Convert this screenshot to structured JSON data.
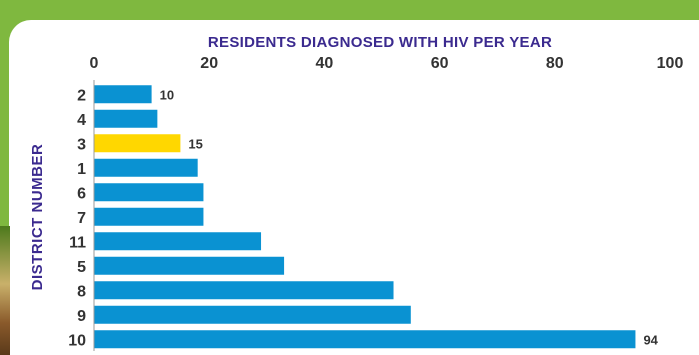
{
  "colors": {
    "frame": "#7fb83f",
    "bar": "#0a92d2",
    "highlight": "#ffd700",
    "title": "#3b2a8f"
  },
  "chart_data": {
    "type": "bar",
    "orientation": "horizontal",
    "title": "RESIDENTS DIAGNOSED WITH HIV PER YEAR",
    "ylabel": "DISTRICT NUMBER",
    "xlabel": "",
    "xlim": [
      0,
      100
    ],
    "xticks": [
      0,
      20,
      40,
      60,
      80,
      100
    ],
    "x_axis_position": "top",
    "grid": false,
    "categories": [
      "2",
      "4",
      "3",
      "1",
      "6",
      "7",
      "11",
      "5",
      "8",
      "9",
      "10"
    ],
    "values": [
      10,
      11,
      15,
      18,
      19,
      19,
      29,
      33,
      52,
      55,
      94
    ],
    "highlight_category": "3",
    "data_labels": [
      {
        "category": "2",
        "text": "10"
      },
      {
        "category": "3",
        "text": "15"
      },
      {
        "category": "10",
        "text": "94"
      }
    ]
  }
}
